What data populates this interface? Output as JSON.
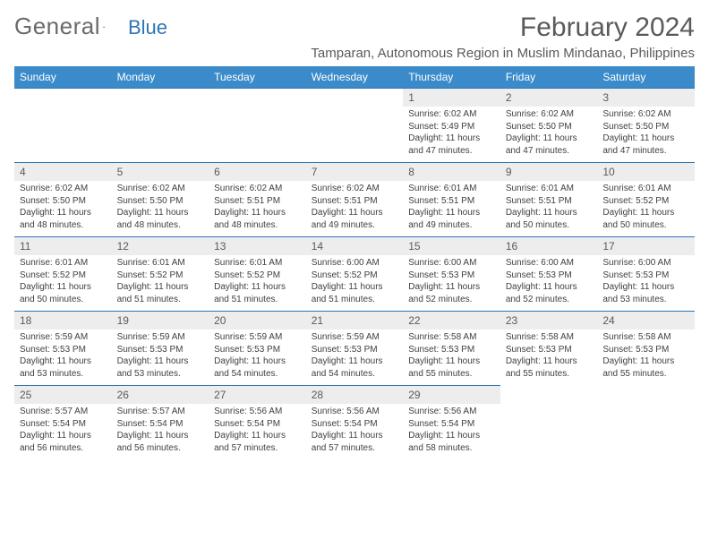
{
  "brand": {
    "part1": "General",
    "part2": "Blue",
    "logo_color": "#2f75b5"
  },
  "title": "February 2024",
  "location": "Tamparan, Autonomous Region in Muslim Mindanao, Philippines",
  "header_bg": "#3b8bca",
  "header_fg": "#ffffff",
  "daynum_bg": "#ededed",
  "border_color": "#2f75b5",
  "day_names": [
    "Sunday",
    "Monday",
    "Tuesday",
    "Wednesday",
    "Thursday",
    "Friday",
    "Saturday"
  ],
  "weeks": [
    [
      null,
      null,
      null,
      null,
      {
        "num": "1",
        "sunrise": "Sunrise: 6:02 AM",
        "sunset": "Sunset: 5:49 PM",
        "daylight": "Daylight: 11 hours and 47 minutes."
      },
      {
        "num": "2",
        "sunrise": "Sunrise: 6:02 AM",
        "sunset": "Sunset: 5:50 PM",
        "daylight": "Daylight: 11 hours and 47 minutes."
      },
      {
        "num": "3",
        "sunrise": "Sunrise: 6:02 AM",
        "sunset": "Sunset: 5:50 PM",
        "daylight": "Daylight: 11 hours and 47 minutes."
      }
    ],
    [
      {
        "num": "4",
        "sunrise": "Sunrise: 6:02 AM",
        "sunset": "Sunset: 5:50 PM",
        "daylight": "Daylight: 11 hours and 48 minutes."
      },
      {
        "num": "5",
        "sunrise": "Sunrise: 6:02 AM",
        "sunset": "Sunset: 5:50 PM",
        "daylight": "Daylight: 11 hours and 48 minutes."
      },
      {
        "num": "6",
        "sunrise": "Sunrise: 6:02 AM",
        "sunset": "Sunset: 5:51 PM",
        "daylight": "Daylight: 11 hours and 48 minutes."
      },
      {
        "num": "7",
        "sunrise": "Sunrise: 6:02 AM",
        "sunset": "Sunset: 5:51 PM",
        "daylight": "Daylight: 11 hours and 49 minutes."
      },
      {
        "num": "8",
        "sunrise": "Sunrise: 6:01 AM",
        "sunset": "Sunset: 5:51 PM",
        "daylight": "Daylight: 11 hours and 49 minutes."
      },
      {
        "num": "9",
        "sunrise": "Sunrise: 6:01 AM",
        "sunset": "Sunset: 5:51 PM",
        "daylight": "Daylight: 11 hours and 50 minutes."
      },
      {
        "num": "10",
        "sunrise": "Sunrise: 6:01 AM",
        "sunset": "Sunset: 5:52 PM",
        "daylight": "Daylight: 11 hours and 50 minutes."
      }
    ],
    [
      {
        "num": "11",
        "sunrise": "Sunrise: 6:01 AM",
        "sunset": "Sunset: 5:52 PM",
        "daylight": "Daylight: 11 hours and 50 minutes."
      },
      {
        "num": "12",
        "sunrise": "Sunrise: 6:01 AM",
        "sunset": "Sunset: 5:52 PM",
        "daylight": "Daylight: 11 hours and 51 minutes."
      },
      {
        "num": "13",
        "sunrise": "Sunrise: 6:01 AM",
        "sunset": "Sunset: 5:52 PM",
        "daylight": "Daylight: 11 hours and 51 minutes."
      },
      {
        "num": "14",
        "sunrise": "Sunrise: 6:00 AM",
        "sunset": "Sunset: 5:52 PM",
        "daylight": "Daylight: 11 hours and 51 minutes."
      },
      {
        "num": "15",
        "sunrise": "Sunrise: 6:00 AM",
        "sunset": "Sunset: 5:53 PM",
        "daylight": "Daylight: 11 hours and 52 minutes."
      },
      {
        "num": "16",
        "sunrise": "Sunrise: 6:00 AM",
        "sunset": "Sunset: 5:53 PM",
        "daylight": "Daylight: 11 hours and 52 minutes."
      },
      {
        "num": "17",
        "sunrise": "Sunrise: 6:00 AM",
        "sunset": "Sunset: 5:53 PM",
        "daylight": "Daylight: 11 hours and 53 minutes."
      }
    ],
    [
      {
        "num": "18",
        "sunrise": "Sunrise: 5:59 AM",
        "sunset": "Sunset: 5:53 PM",
        "daylight": "Daylight: 11 hours and 53 minutes."
      },
      {
        "num": "19",
        "sunrise": "Sunrise: 5:59 AM",
        "sunset": "Sunset: 5:53 PM",
        "daylight": "Daylight: 11 hours and 53 minutes."
      },
      {
        "num": "20",
        "sunrise": "Sunrise: 5:59 AM",
        "sunset": "Sunset: 5:53 PM",
        "daylight": "Daylight: 11 hours and 54 minutes."
      },
      {
        "num": "21",
        "sunrise": "Sunrise: 5:59 AM",
        "sunset": "Sunset: 5:53 PM",
        "daylight": "Daylight: 11 hours and 54 minutes."
      },
      {
        "num": "22",
        "sunrise": "Sunrise: 5:58 AM",
        "sunset": "Sunset: 5:53 PM",
        "daylight": "Daylight: 11 hours and 55 minutes."
      },
      {
        "num": "23",
        "sunrise": "Sunrise: 5:58 AM",
        "sunset": "Sunset: 5:53 PM",
        "daylight": "Daylight: 11 hours and 55 minutes."
      },
      {
        "num": "24",
        "sunrise": "Sunrise: 5:58 AM",
        "sunset": "Sunset: 5:53 PM",
        "daylight": "Daylight: 11 hours and 55 minutes."
      }
    ],
    [
      {
        "num": "25",
        "sunrise": "Sunrise: 5:57 AM",
        "sunset": "Sunset: 5:54 PM",
        "daylight": "Daylight: 11 hours and 56 minutes."
      },
      {
        "num": "26",
        "sunrise": "Sunrise: 5:57 AM",
        "sunset": "Sunset: 5:54 PM",
        "daylight": "Daylight: 11 hours and 56 minutes."
      },
      {
        "num": "27",
        "sunrise": "Sunrise: 5:56 AM",
        "sunset": "Sunset: 5:54 PM",
        "daylight": "Daylight: 11 hours and 57 minutes."
      },
      {
        "num": "28",
        "sunrise": "Sunrise: 5:56 AM",
        "sunset": "Sunset: 5:54 PM",
        "daylight": "Daylight: 11 hours and 57 minutes."
      },
      {
        "num": "29",
        "sunrise": "Sunrise: 5:56 AM",
        "sunset": "Sunset: 5:54 PM",
        "daylight": "Daylight: 11 hours and 58 minutes."
      },
      null,
      null
    ]
  ]
}
